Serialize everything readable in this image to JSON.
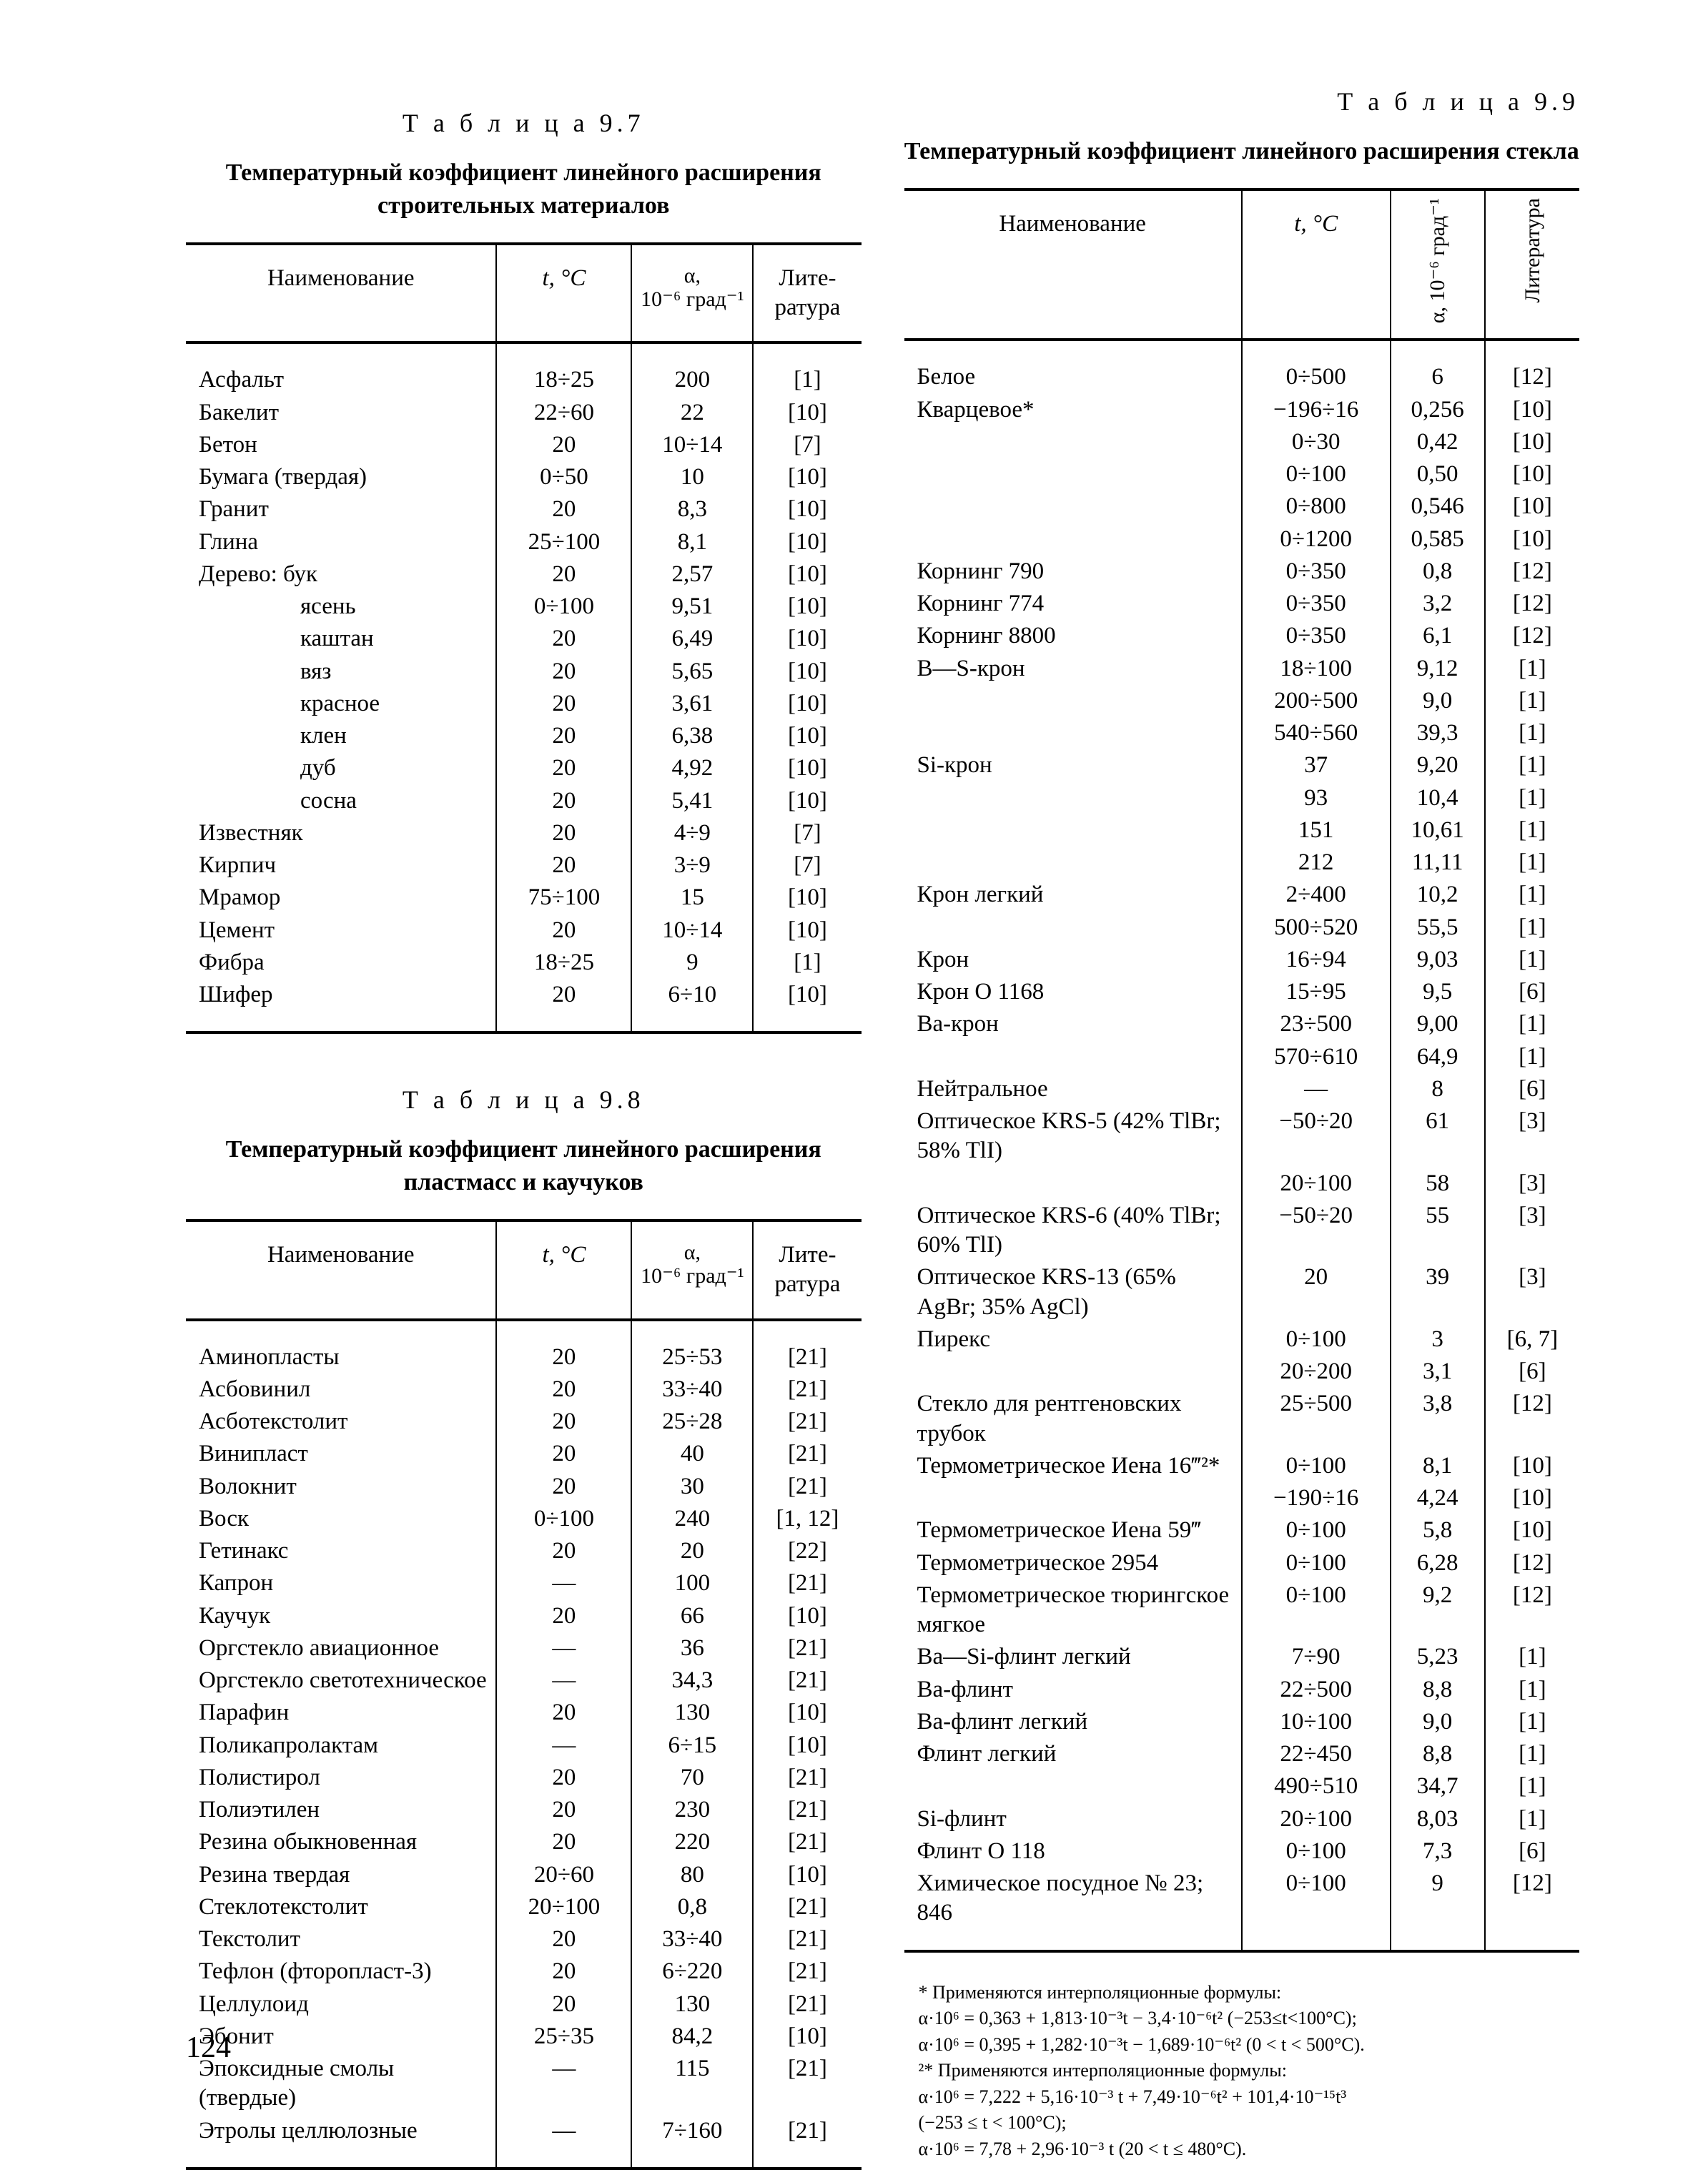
{
  "page_number": "124",
  "left": {
    "table97": {
      "number": "Т а б л и ц а  9.7",
      "caption": "Температурный коэффициент линейного расширения строительных материалов",
      "columns": {
        "name": "Наименование",
        "temp": "t, °C",
        "alpha_line1": "α,",
        "alpha_line2": "10⁻⁶ град⁻¹",
        "ref": "Лите-\nратура"
      },
      "rows": [
        {
          "name": "Асфальт",
          "temp": "18÷25",
          "alpha": "200",
          "ref": "[1]",
          "indent": 0
        },
        {
          "name": "Бакелит",
          "temp": "22÷60",
          "alpha": "22",
          "ref": "[10]",
          "indent": 0
        },
        {
          "name": "Бетон",
          "temp": "20",
          "alpha": "10÷14",
          "ref": "[7]",
          "indent": 0
        },
        {
          "name": "Бумага (твердая)",
          "temp": "0÷50",
          "alpha": "10",
          "ref": "[10]",
          "indent": 0
        },
        {
          "name": "Гранит",
          "temp": "20",
          "alpha": "8,3",
          "ref": "[10]",
          "indent": 0
        },
        {
          "name": "Глина",
          "temp": "25÷100",
          "alpha": "8,1",
          "ref": "[10]",
          "indent": 0
        },
        {
          "name": "Дерево: бук",
          "temp": "20",
          "alpha": "2,57",
          "ref": "[10]",
          "indent": 0
        },
        {
          "name": "ясень",
          "temp": "0÷100",
          "alpha": "9,51",
          "ref": "[10]",
          "indent": 1
        },
        {
          "name": "каштан",
          "temp": "20",
          "alpha": "6,49",
          "ref": "[10]",
          "indent": 1
        },
        {
          "name": "вяз",
          "temp": "20",
          "alpha": "5,65",
          "ref": "[10]",
          "indent": 1
        },
        {
          "name": "красное",
          "temp": "20",
          "alpha": "3,61",
          "ref": "[10]",
          "indent": 1
        },
        {
          "name": "клен",
          "temp": "20",
          "alpha": "6,38",
          "ref": "[10]",
          "indent": 1
        },
        {
          "name": "дуб",
          "temp": "20",
          "alpha": "4,92",
          "ref": "[10]",
          "indent": 1
        },
        {
          "name": "сосна",
          "temp": "20",
          "alpha": "5,41",
          "ref": "[10]",
          "indent": 1
        },
        {
          "name": "Известняк",
          "temp": "20",
          "alpha": "4÷9",
          "ref": "[7]",
          "indent": 0
        },
        {
          "name": "Кирпич",
          "temp": "20",
          "alpha": "3÷9",
          "ref": "[7]",
          "indent": 0
        },
        {
          "name": "Мрамор",
          "temp": "75÷100",
          "alpha": "15",
          "ref": "[10]",
          "indent": 0
        },
        {
          "name": "Цемент",
          "temp": "20",
          "alpha": "10÷14",
          "ref": "[10]",
          "indent": 0
        },
        {
          "name": "Фибра",
          "temp": "18÷25",
          "alpha": "9",
          "ref": "[1]",
          "indent": 0
        },
        {
          "name": "Шифер",
          "temp": "20",
          "alpha": "6÷10",
          "ref": "[10]",
          "indent": 0
        }
      ]
    },
    "table98": {
      "number": "Т а б л и ц а  9.8",
      "caption": "Температурный коэффициент линейного расширения пластмасс и каучуков",
      "columns": {
        "name": "Наименование",
        "temp": "t, °C",
        "alpha_line1": "α,",
        "alpha_line2": "10⁻⁶ град⁻¹",
        "ref": "Лите-\nратура"
      },
      "rows": [
        {
          "name": "Аминопласты",
          "temp": "20",
          "alpha": "25÷53",
          "ref": "[21]"
        },
        {
          "name": "Асбовинил",
          "temp": "20",
          "alpha": "33÷40",
          "ref": "[21]"
        },
        {
          "name": "Асботекстолит",
          "temp": "20",
          "alpha": "25÷28",
          "ref": "[21]"
        },
        {
          "name": "Винипласт",
          "temp": "20",
          "alpha": "40",
          "ref": "[21]"
        },
        {
          "name": "Волокнит",
          "temp": "20",
          "alpha": "30",
          "ref": "[21]"
        },
        {
          "name": "Воск",
          "temp": "0÷100",
          "alpha": "240",
          "ref": "[1, 12]"
        },
        {
          "name": "Гетинакс",
          "temp": "20",
          "alpha": "20",
          "ref": "[22]"
        },
        {
          "name": "Капрон",
          "temp": "—",
          "alpha": "100",
          "ref": "[21]"
        },
        {
          "name": "Каучук",
          "temp": "20",
          "alpha": "66",
          "ref": "[10]"
        },
        {
          "name": "Оргстекло авиационное",
          "temp": "—",
          "alpha": "36",
          "ref": "[21]"
        },
        {
          "name": "Оргстекло светотехническое",
          "temp": "—",
          "alpha": "34,3",
          "ref": "[21]"
        },
        {
          "name": "Парафин",
          "temp": "20",
          "alpha": "130",
          "ref": "[10]"
        },
        {
          "name": "Поликапролактам",
          "temp": "—",
          "alpha": "6÷15",
          "ref": "[10]"
        },
        {
          "name": "Полистирол",
          "temp": "20",
          "alpha": "70",
          "ref": "[21]"
        },
        {
          "name": "Полиэтилен",
          "temp": "20",
          "alpha": "230",
          "ref": "[21]"
        },
        {
          "name": "Резина обыкновенная",
          "temp": "20",
          "alpha": "220",
          "ref": "[21]"
        },
        {
          "name": "Резина твердая",
          "temp": "20÷60",
          "alpha": "80",
          "ref": "[10]"
        },
        {
          "name": "Стеклотекстолит",
          "temp": "20÷100",
          "alpha": "0,8",
          "ref": "[21]"
        },
        {
          "name": "Текстолит",
          "temp": "20",
          "alpha": "33÷40",
          "ref": "[21]"
        },
        {
          "name": "Тефлон (фторопласт-3)",
          "temp": "20",
          "alpha": "6÷220",
          "ref": "[21]"
        },
        {
          "name": "Целлулоид",
          "temp": "20",
          "alpha": "130",
          "ref": "[21]"
        },
        {
          "name": "Эбонит",
          "temp": "25÷35",
          "alpha": "84,2",
          "ref": "[10]"
        },
        {
          "name": "Эпоксидные смолы (твердые)",
          "temp": "—",
          "alpha": "115",
          "ref": "[21]"
        },
        {
          "name": "Этролы целлюлозные",
          "temp": "—",
          "alpha": "7÷160",
          "ref": "[21]"
        }
      ]
    }
  },
  "right": {
    "table99": {
      "number": "Т а б л и ц а  9.9",
      "caption": "Температурный коэффициент линейного расширения стекла",
      "columns": {
        "name": "Наименование",
        "temp": "t, °C",
        "alpha_vert": "α, 10⁻⁶ град⁻¹",
        "ref_vert": "Литература"
      },
      "rows": [
        {
          "name": "Белое",
          "temp": "0÷500",
          "alpha": "6",
          "ref": "[12]"
        },
        {
          "name": "Кварцевое*",
          "temp": "−196÷16",
          "alpha": "0,256",
          "ref": "[10]"
        },
        {
          "name": "",
          "temp": "0÷30",
          "alpha": "0,42",
          "ref": "[10]"
        },
        {
          "name": "",
          "temp": "0÷100",
          "alpha": "0,50",
          "ref": "[10]"
        },
        {
          "name": "",
          "temp": "0÷800",
          "alpha": "0,546",
          "ref": "[10]"
        },
        {
          "name": "",
          "temp": "0÷1200",
          "alpha": "0,585",
          "ref": "[10]"
        },
        {
          "name": "Корнинг 790",
          "temp": "0÷350",
          "alpha": "0,8",
          "ref": "[12]"
        },
        {
          "name": "Корнинг 774",
          "temp": "0÷350",
          "alpha": "3,2",
          "ref": "[12]"
        },
        {
          "name": "Корнинг 8800",
          "temp": "0÷350",
          "alpha": "6,1",
          "ref": "[12]"
        },
        {
          "name": "B—S-крон",
          "temp": "18÷100",
          "alpha": "9,12",
          "ref": "[1]"
        },
        {
          "name": "",
          "temp": "200÷500",
          "alpha": "9,0",
          "ref": "[1]"
        },
        {
          "name": "",
          "temp": "540÷560",
          "alpha": "39,3",
          "ref": "[1]"
        },
        {
          "name": "Si-крон",
          "temp": "37",
          "alpha": "9,20",
          "ref": "[1]"
        },
        {
          "name": "",
          "temp": "93",
          "alpha": "10,4",
          "ref": "[1]"
        },
        {
          "name": "",
          "temp": "151",
          "alpha": "10,61",
          "ref": "[1]"
        },
        {
          "name": "",
          "temp": "212",
          "alpha": "11,11",
          "ref": "[1]"
        },
        {
          "name": "Крон легкий",
          "temp": "2÷400",
          "alpha": "10,2",
          "ref": "[1]"
        },
        {
          "name": "",
          "temp": "500÷520",
          "alpha": "55,5",
          "ref": "[1]"
        },
        {
          "name": "Крон",
          "temp": "16÷94",
          "alpha": "9,03",
          "ref": "[1]"
        },
        {
          "name": "Крон O 1168",
          "temp": "15÷95",
          "alpha": "9,5",
          "ref": "[6]"
        },
        {
          "name": "Ba-крон",
          "temp": "23÷500",
          "alpha": "9,00",
          "ref": "[1]"
        },
        {
          "name": "",
          "temp": "570÷610",
          "alpha": "64,9",
          "ref": "[1]"
        },
        {
          "name": "Нейтральное",
          "temp": "—",
          "alpha": "8",
          "ref": "[6]"
        },
        {
          "name": "Оптическое KRS-5 (42% TlBr; 58% TlI)",
          "temp": "−50÷20",
          "alpha": "61",
          "ref": "[3]"
        },
        {
          "name": "",
          "temp": "20÷100",
          "alpha": "58",
          "ref": "[3]"
        },
        {
          "name": "Оптическое KRS-6 (40% TlBr; 60% TlI)",
          "temp": "−50÷20",
          "alpha": "55",
          "ref": "[3]"
        },
        {
          "name": "Оптическое KRS-13 (65% AgBr; 35% AgCl)",
          "temp": "20",
          "alpha": "39",
          "ref": "[3]"
        },
        {
          "name": "Пирекс",
          "temp": "0÷100",
          "alpha": "3",
          "ref": "[6, 7]"
        },
        {
          "name": "",
          "temp": "20÷200",
          "alpha": "3,1",
          "ref": "[6]"
        },
        {
          "name": "Стекло для рентгеновских трубок",
          "temp": "25÷500",
          "alpha": "3,8",
          "ref": "[12]"
        },
        {
          "name": "Термометрическое Иена 16‴²*",
          "temp": "0÷100",
          "alpha": "8,1",
          "ref": "[10]"
        },
        {
          "name": "",
          "temp": "−190÷16",
          "alpha": "4,24",
          "ref": "[10]"
        },
        {
          "name": "Термометрическое Иена 59‴",
          "temp": "0÷100",
          "alpha": "5,8",
          "ref": "[10]"
        },
        {
          "name": "Термометрическое 2954",
          "temp": "0÷100",
          "alpha": "6,28",
          "ref": "[12]"
        },
        {
          "name": "Термометрическое тюрингское мягкое",
          "temp": "0÷100",
          "alpha": "9,2",
          "ref": "[12]"
        },
        {
          "name": "Ba—Si-флинт легкий",
          "temp": "7÷90",
          "alpha": "5,23",
          "ref": "[1]"
        },
        {
          "name": "Ba-флинт",
          "temp": "22÷500",
          "alpha": "8,8",
          "ref": "[1]"
        },
        {
          "name": "Ba-флинт легкий",
          "temp": "10÷100",
          "alpha": "9,0",
          "ref": "[1]"
        },
        {
          "name": "Флинт легкий",
          "temp": "22÷450",
          "alpha": "8,8",
          "ref": "[1]"
        },
        {
          "name": "",
          "temp": "490÷510",
          "alpha": "34,7",
          "ref": "[1]"
        },
        {
          "name": "Si-флинт",
          "temp": "20÷100",
          "alpha": "8,03",
          "ref": "[1]"
        },
        {
          "name": "Флинт O 118",
          "temp": "0÷100",
          "alpha": "7,3",
          "ref": "[6]"
        },
        {
          "name": "Химическое посудное № 23; 846",
          "temp": "0÷100",
          "alpha": "9",
          "ref": "[12]"
        }
      ],
      "footnotes": [
        "* Применяются интерполяционные формулы:",
        "α·10⁶ = 0,363 + 1,813·10⁻³t − 3,4·10⁻⁶t² (−253≤t<100°C);",
        "α·10⁶ = 0,395 + 1,282·10⁻³t − 1,689·10⁻⁶t² (0 < t < 500°C).",
        "²* Применяются интерполяционные формулы:",
        "α·10⁶ = 7,222 + 5,16·10⁻³ t + 7,49·10⁻⁶t² + 101,4·10⁻¹⁵t³",
        "(−253 ≤ t < 100°C);",
        "α·10⁶ = 7,78 + 2,96·10⁻³ t (20 < t ≤ 480°C)."
      ]
    }
  }
}
